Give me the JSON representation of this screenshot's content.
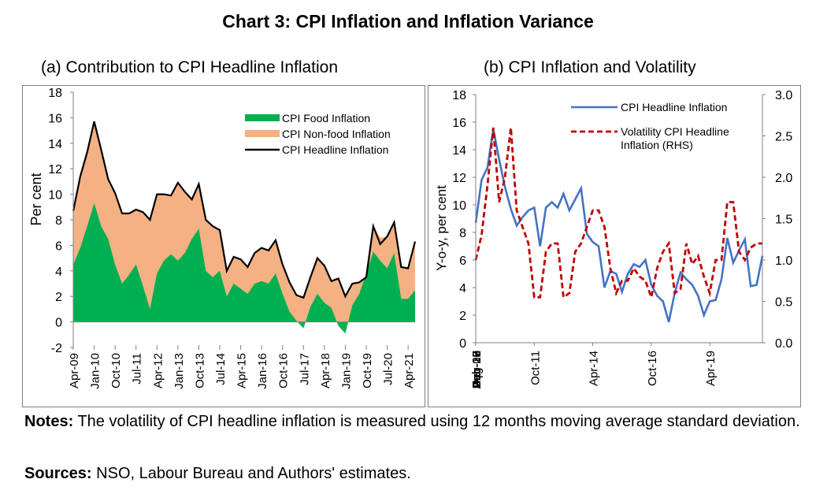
{
  "title": "Chart 3: CPI Inflation and Inflation Variance",
  "notes": {
    "label": "Notes:",
    "text": "The volatility of CPI headline inflation is measured using 12 months moving average standard deviation."
  },
  "sources": {
    "label": "Sources:",
    "text": "NSO, Labour Bureau and Authors' estimates."
  },
  "colors": {
    "food": "#00b050",
    "nonfood": "#f4b183",
    "headline_black": "#000000",
    "headline_blue": "#4472c4",
    "volatility": "#c00000"
  },
  "chart_data": [
    {
      "type": "area",
      "title": "(a) Contribution to CPI Headline Inflation",
      "ylabel": "Per cent",
      "xlabel": "",
      "ylim": [
        -2,
        18
      ],
      "yticks": [
        "-2",
        "0",
        "2",
        "4",
        "6",
        "8",
        "10",
        "12",
        "14",
        "16",
        "18"
      ],
      "x_tick_labels": [
        "Apr-09",
        "Jan-10",
        "Oct-10",
        "Jul-11",
        "Apr-12",
        "Jan-13",
        "Oct-13",
        "Jul-14",
        "Apr-15",
        "Jan-16",
        "Oct-16",
        "Jul-17",
        "Apr-18",
        "Jan-19",
        "Oct-19",
        "Jul-20",
        "Apr-21"
      ],
      "x": [
        "Apr-09",
        "Jul-09",
        "Oct-09",
        "Jan-10",
        "Apr-10",
        "Jul-10",
        "Oct-10",
        "Jan-11",
        "Apr-11",
        "Jul-11",
        "Oct-11",
        "Jan-12",
        "Apr-12",
        "Jul-12",
        "Oct-12",
        "Jan-13",
        "Apr-13",
        "Jul-13",
        "Oct-13",
        "Jan-14",
        "Apr-14",
        "Jul-14",
        "Oct-14",
        "Jan-15",
        "Apr-15",
        "Jul-15",
        "Oct-15",
        "Jan-16",
        "Apr-16",
        "Jul-16",
        "Oct-16",
        "Jan-17",
        "Apr-17",
        "Jul-17",
        "Oct-17",
        "Jan-18",
        "Apr-18",
        "Jul-18",
        "Oct-18",
        "Jan-19",
        "Apr-19",
        "Jul-19",
        "Oct-19",
        "Jan-20",
        "Apr-20",
        "Jul-20",
        "Oct-20",
        "Jan-21",
        "Apr-21",
        "Jun-21"
      ],
      "legend_position": "top-right",
      "series": [
        {
          "name": "CPI Food Inflation",
          "type": "area",
          "values": [
            4.5,
            5.8,
            7.5,
            9.3,
            7.5,
            6.5,
            4.5,
            3.0,
            3.7,
            4.5,
            2.8,
            1.0,
            3.8,
            4.8,
            5.3,
            4.8,
            5.4,
            6.5,
            7.3,
            4.0,
            3.5,
            4.0,
            2.0,
            3.0,
            2.6,
            2.2,
            3.0,
            3.2,
            3.0,
            3.8,
            2.2,
            0.8,
            0.1,
            -0.5,
            1.2,
            2.2,
            1.5,
            1.1,
            -0.3,
            -0.9,
            1.3,
            2.2,
            3.8,
            5.5,
            4.8,
            4.2,
            5.4,
            1.8,
            1.8,
            2.5
          ]
        },
        {
          "name": "CPI Non-food Inflation",
          "type": "area",
          "values": [
            4.2,
            5.6,
            5.8,
            6.4,
            6.0,
            4.7,
            5.6,
            5.5,
            4.8,
            4.3,
            5.8,
            7.0,
            6.2,
            5.2,
            4.6,
            6.1,
            4.8,
            3.1,
            3.5,
            4.0,
            4.0,
            3.2,
            2.0,
            2.1,
            2.3,
            2.1,
            2.4,
            2.6,
            2.6,
            2.6,
            2.3,
            2.3,
            2.0,
            2.4,
            2.3,
            2.8,
            2.9,
            2.1,
            3.7,
            2.9,
            1.7,
            0.9,
            -0.3,
            2.0,
            1.8,
            2.5,
            2.4,
            2.5,
            2.4,
            3.8
          ]
        },
        {
          "name": "CPI Headline Inflation",
          "type": "line",
          "values": [
            8.7,
            11.4,
            13.3,
            15.7,
            13.5,
            11.2,
            10.1,
            8.5,
            8.5,
            8.8,
            8.6,
            8.0,
            10.0,
            10.0,
            9.9,
            10.9,
            10.2,
            9.6,
            10.8,
            8.0,
            7.5,
            7.2,
            4.0,
            5.1,
            4.9,
            4.3,
            5.4,
            5.8,
            5.6,
            6.4,
            4.5,
            3.1,
            2.1,
            1.9,
            3.5,
            5.0,
            4.4,
            3.2,
            3.4,
            2.0,
            3.0,
            3.1,
            3.5,
            7.5,
            6.1,
            6.7,
            7.8,
            4.3,
            4.2,
            6.3
          ]
        }
      ]
    },
    {
      "type": "line",
      "title": "(b) CPI Inflation and Volatility",
      "ylabel": "Y-o-y, per cent",
      "xlabel": "",
      "ylim": [
        0,
        18
      ],
      "yticks": [
        "0",
        "2",
        "4",
        "6",
        "8",
        "10",
        "12",
        "14",
        "16",
        "18"
      ],
      "y2lim": [
        0,
        3
      ],
      "y2ticks": [
        "0.0",
        "0.5",
        "1.0",
        "1.5",
        "2.0",
        "2.5",
        "3.0"
      ],
      "x_tick_labels": [
        "Apr-09",
        "Feb-10",
        "Dec-10",
        "Oct-11",
        "Aug-12",
        "Jun-13",
        "Apr-14",
        "Feb-15",
        "Dec-15",
        "Oct-16",
        "Aug-17",
        "Jun-18",
        "Apr-19",
        "Feb-20",
        "Dec-20"
      ],
      "x": [
        "Apr-09",
        "Jul-09",
        "Oct-09",
        "Jan-10",
        "Apr-10",
        "Jul-10",
        "Oct-10",
        "Jan-11",
        "Apr-11",
        "Jul-11",
        "Oct-11",
        "Jan-12",
        "Apr-12",
        "Jul-12",
        "Oct-12",
        "Jan-13",
        "Apr-13",
        "Jul-13",
        "Oct-13",
        "Jan-14",
        "Apr-14",
        "Jul-14",
        "Oct-14",
        "Jan-15",
        "Apr-15",
        "Jul-15",
        "Oct-15",
        "Jan-16",
        "Apr-16",
        "Jul-16",
        "Oct-16",
        "Jan-17",
        "Apr-17",
        "Jul-17",
        "Oct-17",
        "Jan-18",
        "Apr-18",
        "Jul-18",
        "Oct-18",
        "Jan-19",
        "Apr-19",
        "Jul-19",
        "Oct-19",
        "Jan-20",
        "Apr-20",
        "Jul-20",
        "Oct-20",
        "Jan-21",
        "Apr-21",
        "Jun-21"
      ],
      "legend_position": "top-right",
      "series": [
        {
          "name": "CPI Headline Inflation",
          "axis": "left",
          "values": [
            8.7,
            11.8,
            12.7,
            15.5,
            13.3,
            11.3,
            9.7,
            8.5,
            9.1,
            9.6,
            9.8,
            7.0,
            9.8,
            10.2,
            9.8,
            10.8,
            9.6,
            10.4,
            11.2,
            7.9,
            7.3,
            7.0,
            4.0,
            5.2,
            5.0,
            3.7,
            5.0,
            5.7,
            5.5,
            6.0,
            4.2,
            3.4,
            3.0,
            1.5,
            3.6,
            5.1,
            4.6,
            4.2,
            3.4,
            2.0,
            3.0,
            3.1,
            4.6,
            7.6,
            5.8,
            6.7,
            7.5,
            4.1,
            4.2,
            6.3
          ]
        },
        {
          "name": "Volatility CPI Headline Inflation (RHS)",
          "axis": "right",
          "values": [
            1.0,
            1.3,
            1.9,
            2.6,
            1.7,
            2.0,
            2.6,
            1.6,
            1.4,
            1.2,
            0.55,
            0.55,
            1.1,
            1.2,
            1.2,
            0.55,
            0.6,
            1.1,
            1.2,
            1.4,
            1.6,
            1.6,
            1.4,
            0.9,
            0.6,
            0.75,
            0.75,
            0.9,
            0.8,
            0.75,
            0.55,
            0.9,
            1.1,
            1.2,
            0.6,
            0.65,
            1.2,
            0.95,
            1.05,
            0.8,
            0.6,
            1.0,
            1.0,
            1.7,
            1.7,
            1.1,
            1.0,
            1.15,
            1.2,
            1.2
          ]
        }
      ]
    }
  ]
}
